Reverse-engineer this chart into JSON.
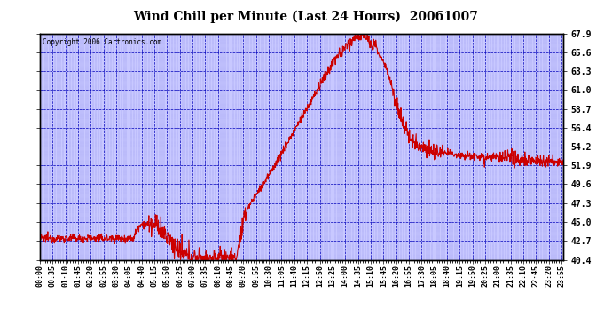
{
  "title": "Wind Chill per Minute (Last 24 Hours)  20061007",
  "copyright_text": "Copyright 2006 Cartronics.com",
  "yticks": [
    40.4,
    42.7,
    45.0,
    47.3,
    49.6,
    51.9,
    54.2,
    56.4,
    58.7,
    61.0,
    63.3,
    65.6,
    67.9
  ],
  "ymin": 40.4,
  "ymax": 67.9,
  "line_color": "#cc0000",
  "plot_bg_color": "#c8c8ff",
  "grid_color": "#0000bb",
  "border_color": "#000000",
  "title_color": "#000000",
  "xtick_labels": [
    "00:00",
    "00:35",
    "01:10",
    "01:45",
    "02:20",
    "02:55",
    "03:30",
    "04:05",
    "04:40",
    "05:15",
    "05:50",
    "06:25",
    "07:00",
    "07:35",
    "08:10",
    "08:45",
    "09:20",
    "09:55",
    "10:30",
    "11:05",
    "11:40",
    "12:15",
    "12:50",
    "13:25",
    "14:00",
    "14:35",
    "15:10",
    "15:45",
    "16:20",
    "16:55",
    "17:30",
    "18:05",
    "18:40",
    "19:15",
    "19:50",
    "20:25",
    "21:00",
    "21:35",
    "22:10",
    "22:45",
    "23:20",
    "23:55"
  ]
}
